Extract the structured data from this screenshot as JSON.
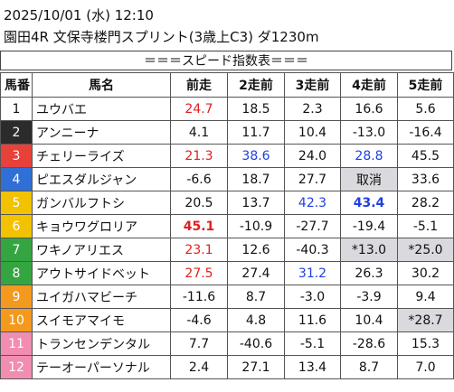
{
  "header": {
    "line1": "2025/10/01 (水) 12:10",
    "line2": "園田4R 文保寺楼門スプリント(3歳上C3) ダ1230m"
  },
  "table": {
    "title": "＝＝＝スピード指数表＝＝＝",
    "columns": [
      "馬番",
      "馬名",
      "前走",
      "2走前",
      "3走前",
      "4走前",
      "5走前"
    ],
    "rows": [
      [
        "1",
        "ユウバエ",
        "24.7",
        "18.5",
        "2.3",
        "16.6",
        "5.6"
      ],
      [
        "2",
        "アンニーナ",
        "4.1",
        "11.7",
        "10.4",
        "-13.0",
        "-16.4"
      ],
      [
        "3",
        "チェリーライズ",
        "21.3",
        "38.6",
        "24.0",
        "28.8",
        "45.5"
      ],
      [
        "4",
        "ピエスダルジャン",
        "-6.6",
        "18.7",
        "27.7",
        "取消",
        "33.6"
      ],
      [
        "5",
        "ガンバルフトシ",
        "20.5",
        "13.7",
        "42.3",
        "43.4",
        "28.2"
      ],
      [
        "6",
        "キョウワグロリア",
        "45.1",
        "-10.9",
        "-27.7",
        "-19.4",
        "-5.1"
      ],
      [
        "7",
        "ワキノアリエス",
        "23.1",
        "12.6",
        "-40.3",
        "*13.0",
        "*25.0"
      ],
      [
        "8",
        "アウトサイドベット",
        "27.5",
        "27.4",
        "31.2",
        "26.3",
        "30.2"
      ],
      [
        "9",
        "ユイガハマビーチ",
        "-11.6",
        "8.7",
        "-3.0",
        "-3.9",
        "9.4"
      ],
      [
        "10",
        "スイモアマイモ",
        "-4.6",
        "4.8",
        "11.6",
        "10.4",
        "*28.7"
      ],
      [
        "11",
        "トランセンデンタル",
        "7.7",
        "-40.6",
        "-5.1",
        "-28.6",
        "15.3"
      ],
      [
        "12",
        "テーオーパーソナル",
        "2.4",
        "27.1",
        "13.4",
        "8.7",
        "7.0"
      ]
    ]
  }
}
